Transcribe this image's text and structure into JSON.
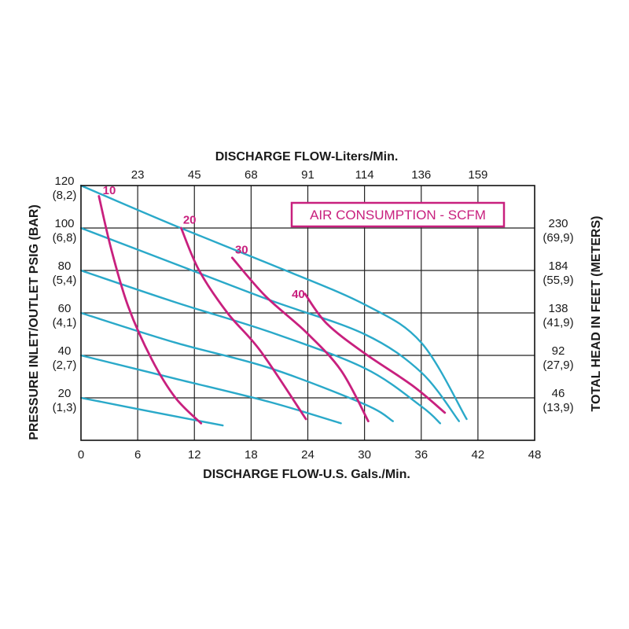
{
  "chart_data": {
    "type": "line",
    "title": "",
    "xlabel_bottom": "DISCHARGE FLOW-U.S. Gals./Min.",
    "xlabel_top": "DISCHARGE FLOW-Liters/Min.",
    "ylabel_left": "PRESSURE INLET/OUTLET PSIG (BAR)",
    "ylabel_right": "TOTAL HEAD IN FEET (METERS)",
    "xlim": [
      0,
      48
    ],
    "ylim": [
      0,
      120
    ],
    "grid": true,
    "x_ticks": [
      {
        "value": 0,
        "label": "0"
      },
      {
        "value": 6,
        "label": "6"
      },
      {
        "value": 12,
        "label": "12"
      },
      {
        "value": 18,
        "label": "18"
      },
      {
        "value": 24,
        "label": "24"
      },
      {
        "value": 30,
        "label": "30"
      },
      {
        "value": 36,
        "label": "36"
      },
      {
        "value": 42,
        "label": "42"
      },
      {
        "value": 48,
        "label": "48"
      }
    ],
    "top_ticks": [
      {
        "value": 6,
        "label": "23"
      },
      {
        "value": 12,
        "label": "45"
      },
      {
        "value": 18,
        "label": "68"
      },
      {
        "value": 24,
        "label": "91"
      },
      {
        "value": 30,
        "label": "114"
      },
      {
        "value": 36,
        "label": "136"
      },
      {
        "value": 42,
        "label": "159"
      }
    ],
    "y_ticks_left": [
      {
        "value": 120,
        "label": "120",
        "sub": "(8,2)"
      },
      {
        "value": 100,
        "label": "100",
        "sub": "(6,8)"
      },
      {
        "value": 80,
        "label": "80",
        "sub": "(5,4)"
      },
      {
        "value": 60,
        "label": "60",
        "sub": "(4,1)"
      },
      {
        "value": 40,
        "label": "40",
        "sub": "(2,7)"
      },
      {
        "value": 20,
        "label": "20",
        "sub": "(1,3)"
      }
    ],
    "y_ticks_right": [
      {
        "value": 100,
        "label": "230",
        "sub": "(69,9)"
      },
      {
        "value": 80,
        "label": "184",
        "sub": "(55,9)"
      },
      {
        "value": 60,
        "label": "138",
        "sub": "(41,9)"
      },
      {
        "value": 40,
        "label": "92",
        "sub": "(27,9)"
      },
      {
        "value": 20,
        "label": "46",
        "sub": "(13,9)"
      }
    ],
    "legend": {
      "text": "AIR CONSUMPTION - SCFM",
      "placement": "top-right"
    },
    "pressure_curves": {
      "color": "#2aa9c9",
      "series": [
        {
          "points": [
            [
              0,
              120
            ],
            [
              10,
              101
            ],
            [
              20,
              83
            ],
            [
              30,
              64
            ],
            [
              36,
              46
            ],
            [
              40.8,
              10
            ]
          ]
        },
        {
          "points": [
            [
              0,
              100
            ],
            [
              10,
              83
            ],
            [
              20,
              66
            ],
            [
              30,
              50
            ],
            [
              36,
              32
            ],
            [
              40,
              9
            ]
          ]
        },
        {
          "points": [
            [
              0,
              80
            ],
            [
              10,
              65
            ],
            [
              20,
              51
            ],
            [
              30,
              34
            ],
            [
              36,
              16
            ],
            [
              38,
              8
            ]
          ]
        },
        {
          "points": [
            [
              0,
              60
            ],
            [
              10,
              46
            ],
            [
              20,
              34
            ],
            [
              30,
              17
            ],
            [
              33,
              9
            ]
          ]
        },
        {
          "points": [
            [
              0,
              40
            ],
            [
              10,
              29
            ],
            [
              20,
              18
            ],
            [
              27.5,
              8
            ]
          ]
        },
        {
          "points": [
            [
              0,
              20
            ],
            [
              8,
              13
            ],
            [
              15,
              7
            ]
          ]
        }
      ]
    },
    "scfm_curves": {
      "color": "#c8207e",
      "series": [
        {
          "name": "10",
          "label_at": [
            2.3,
            116
          ],
          "points": [
            [
              1.9,
              115
            ],
            [
              3.2,
              90
            ],
            [
              5,
              63
            ],
            [
              7.5,
              38
            ],
            [
              10,
              20
            ],
            [
              12.7,
              8
            ]
          ]
        },
        {
          "name": "20",
          "label_at": [
            10.8,
            102
          ],
          "points": [
            [
              10.6,
              100
            ],
            [
              12.5,
              80
            ],
            [
              15.5,
              60
            ],
            [
              19,
              42
            ],
            [
              23.8,
              10
            ]
          ]
        },
        {
          "name": "30",
          "label_at": [
            16.3,
            88
          ],
          "points": [
            [
              16,
              86
            ],
            [
              19.5,
              68
            ],
            [
              23.8,
              51
            ],
            [
              27.5,
              33
            ],
            [
              30.4,
              9
            ]
          ]
        },
        {
          "name": "40",
          "label_at": [
            22.3,
            67
          ],
          "points": [
            [
              23.7,
              69
            ],
            [
              26,
              55
            ],
            [
              30,
              41
            ],
            [
              35,
              26
            ],
            [
              38.5,
              13
            ]
          ]
        }
      ]
    }
  }
}
